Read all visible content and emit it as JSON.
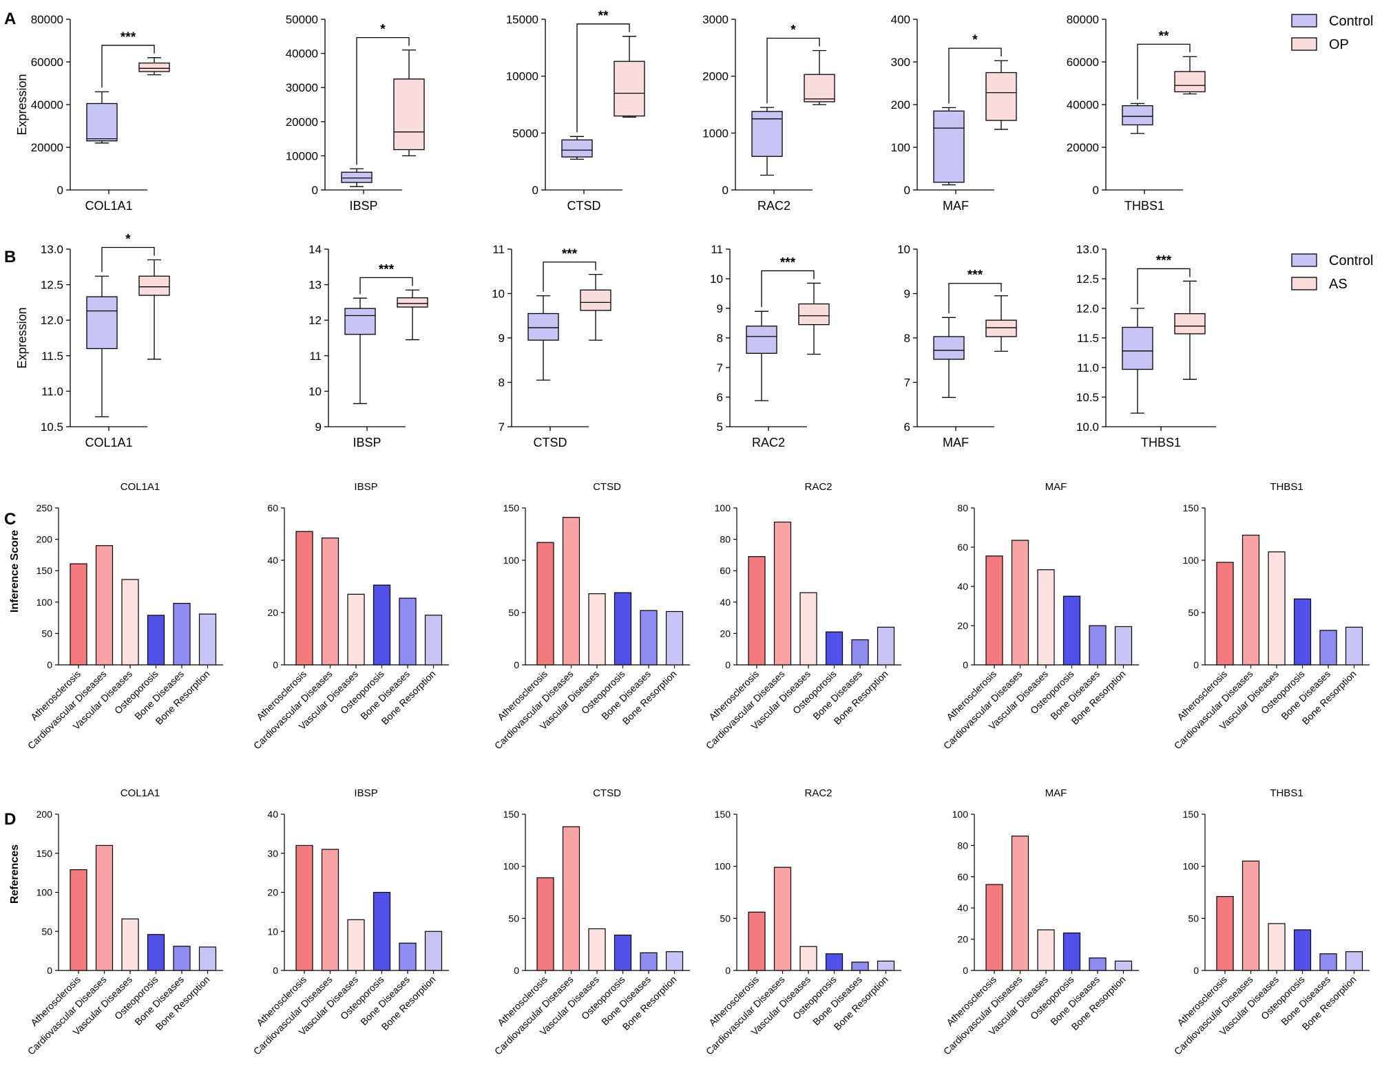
{
  "figure": {
    "panel_labels": [
      "A",
      "B",
      "C",
      "D"
    ]
  },
  "colors": {
    "control": "#c6c5f5",
    "op": "#fbdcdc",
    "as": "#fbdcdc",
    "atherosclerosis": "#f47a7d",
    "cardiovascular_diseases": "#f9a4a4",
    "vascular_diseases": "#fde0e0",
    "osteoporosis": "#5150ea",
    "bone_diseases": "#8e8cf1",
    "bone_resorption": "#c6c5f5"
  },
  "legends": {
    "A": [
      {
        "label": "Control",
        "color": "#c6c5f5"
      },
      {
        "label": "OP",
        "color": "#fbdcdc"
      }
    ],
    "B": [
      {
        "label": "Control",
        "color": "#c6c5f5"
      },
      {
        "label": "AS",
        "color": "#fbdcdc"
      }
    ]
  },
  "chart_data": [
    {
      "panel": "A",
      "type": "box",
      "ylabel": "Expression",
      "groups": [
        "Control",
        "OP"
      ],
      "charts": [
        {
          "gene": "COL1A1",
          "ylim": [
            0,
            80000
          ],
          "yticks": [
            0,
            20000,
            40000,
            60000,
            80000
          ],
          "yticklabels": [
            "0",
            "20000",
            "40000",
            "60000",
            "80000"
          ],
          "sig": "***",
          "boxes": [
            {
              "min": 22000,
              "q1": 23000,
              "median": 24000,
              "q3": 40500,
              "max": 46000
            },
            {
              "min": 54000,
              "q1": 55500,
              "median": 57000,
              "q3": 59500,
              "max": 62000
            }
          ]
        },
        {
          "gene": "IBSP",
          "ylim": [
            0,
            50000
          ],
          "yticks": [
            0,
            10000,
            20000,
            30000,
            40000,
            50000
          ],
          "yticklabels": [
            "0",
            "10000",
            "20000",
            "30000",
            "40000",
            "50000"
          ],
          "sig": "*",
          "boxes": [
            {
              "min": 1000,
              "q1": 2200,
              "median": 3500,
              "q3": 5200,
              "max": 6200
            },
            {
              "min": 10000,
              "q1": 11800,
              "median": 17000,
              "q3": 32500,
              "max": 41000
            }
          ]
        },
        {
          "gene": "CTSD",
          "ylim": [
            0,
            15000
          ],
          "yticks": [
            0,
            5000,
            10000,
            15000
          ],
          "yticklabels": [
            "0",
            "5000",
            "10000",
            "15000"
          ],
          "sig": "**",
          "boxes": [
            {
              "min": 2700,
              "q1": 2900,
              "median": 3500,
              "q3": 4400,
              "max": 4700
            },
            {
              "min": 6400,
              "q1": 6500,
              "median": 8500,
              "q3": 11300,
              "max": 13500
            }
          ]
        },
        {
          "gene": "RAC2",
          "ylim": [
            0,
            3000
          ],
          "yticks": [
            0,
            1000,
            2000,
            3000
          ],
          "yticklabels": [
            "0",
            "1000",
            "2000",
            "3000"
          ],
          "sig": "*",
          "boxes": [
            {
              "min": 260,
              "q1": 590,
              "median": 1250,
              "q3": 1380,
              "max": 1450
            },
            {
              "min": 1500,
              "q1": 1550,
              "median": 1600,
              "q3": 2030,
              "max": 2450
            }
          ]
        },
        {
          "gene": "MAF",
          "ylim": [
            0,
            400
          ],
          "yticks": [
            0,
            100,
            200,
            300,
            400
          ],
          "yticklabels": [
            "0",
            "100",
            "200",
            "300",
            "400"
          ],
          "sig": "*",
          "boxes": [
            {
              "min": 12,
              "q1": 18,
              "median": 145,
              "q3": 185,
              "max": 193
            },
            {
              "min": 142,
              "q1": 163,
              "median": 228,
              "q3": 275,
              "max": 303
            }
          ]
        },
        {
          "gene": "THBS1",
          "ylim": [
            0,
            80000
          ],
          "yticks": [
            0,
            20000,
            40000,
            60000,
            80000
          ],
          "yticklabels": [
            "0",
            "20000",
            "40000",
            "60000",
            "80000"
          ],
          "sig": "**",
          "boxes": [
            {
              "min": 26500,
              "q1": 30500,
              "median": 34500,
              "q3": 39500,
              "max": 40500
            },
            {
              "min": 45000,
              "q1": 46000,
              "median": 49000,
              "q3": 55500,
              "max": 62500
            }
          ]
        }
      ]
    },
    {
      "panel": "B",
      "type": "box",
      "ylabel": "Expression",
      "groups": [
        "Control",
        "AS"
      ],
      "charts": [
        {
          "gene": "COL1A1",
          "ylim": [
            10.5,
            13.0
          ],
          "yticks": [
            10.5,
            11.0,
            11.5,
            12.0,
            12.5,
            13.0
          ],
          "yticklabels": [
            "10.5",
            "11.0",
            "11.5",
            "12.0",
            "12.5",
            "13.0"
          ],
          "sig": "*",
          "boxes": [
            {
              "min": 10.64,
              "q1": 11.6,
              "median": 12.13,
              "q3": 12.33,
              "max": 12.62
            },
            {
              "min": 11.45,
              "q1": 12.35,
              "median": 12.47,
              "q3": 12.62,
              "max": 12.85
            }
          ]
        },
        {
          "gene": "IBSP",
          "ylim": [
            9,
            14
          ],
          "yticks": [
            9,
            10,
            11,
            12,
            13,
            14
          ],
          "yticklabels": [
            "9",
            "10",
            "11",
            "12",
            "13",
            "14"
          ],
          "sig": "***",
          "boxes": [
            {
              "min": 9.65,
              "q1": 11.6,
              "median": 12.13,
              "q3": 12.33,
              "max": 12.62
            },
            {
              "min": 11.45,
              "q1": 12.37,
              "median": 12.47,
              "q3": 12.63,
              "max": 12.85
            }
          ]
        },
        {
          "gene": "CTSD",
          "ylim": [
            7,
            11
          ],
          "yticks": [
            7,
            8,
            9,
            10,
            11
          ],
          "yticklabels": [
            "7",
            "8",
            "9",
            "10",
            "11"
          ],
          "sig": "***",
          "boxes": [
            {
              "min": 8.05,
              "q1": 8.95,
              "median": 9.23,
              "q3": 9.55,
              "max": 9.95
            },
            {
              "min": 8.95,
              "q1": 9.62,
              "median": 9.8,
              "q3": 10.08,
              "max": 10.43
            }
          ]
        },
        {
          "gene": "RAC2",
          "ylim": [
            5,
            11
          ],
          "yticks": [
            5,
            6,
            7,
            8,
            9,
            10,
            11
          ],
          "yticklabels": [
            "5",
            "6",
            "7",
            "8",
            "9",
            "10",
            "11"
          ],
          "sig": "***",
          "boxes": [
            {
              "min": 5.88,
              "q1": 7.48,
              "median": 8.05,
              "q3": 8.4,
              "max": 8.9
            },
            {
              "min": 7.45,
              "q1": 8.45,
              "median": 8.75,
              "q3": 9.15,
              "max": 9.85
            }
          ]
        },
        {
          "gene": "MAF",
          "ylim": [
            6,
            10
          ],
          "yticks": [
            6,
            7,
            8,
            9,
            10
          ],
          "yticklabels": [
            "6",
            "7",
            "8",
            "9",
            "10"
          ],
          "sig": "***",
          "boxes": [
            {
              "min": 6.66,
              "q1": 7.52,
              "median": 7.72,
              "q3": 8.03,
              "max": 8.46
            },
            {
              "min": 7.7,
              "q1": 8.03,
              "median": 8.23,
              "q3": 8.4,
              "max": 8.95
            }
          ]
        },
        {
          "gene": "THBS1",
          "ylim": [
            10.0,
            13.0
          ],
          "yticks": [
            10.0,
            10.5,
            11.0,
            11.5,
            12.0,
            12.5,
            13.0
          ],
          "yticklabels": [
            "10.0",
            "10.5",
            "11.0",
            "11.5",
            "12.0",
            "12.5",
            "13.0"
          ],
          "sig": "***",
          "boxes": [
            {
              "min": 10.23,
              "q1": 10.97,
              "median": 11.28,
              "q3": 11.68,
              "max": 12.0
            },
            {
              "min": 10.8,
              "q1": 11.57,
              "median": 11.7,
              "q3": 11.91,
              "max": 12.46
            }
          ]
        }
      ]
    },
    {
      "panel": "C",
      "type": "bar",
      "ylabel": "Inference Score",
      "categories": [
        "Atherosclerosis",
        "Cardiovascular Diseases",
        "Vascular Diseases",
        "Osteoporosis",
        "Bone Diseases",
        "Bone Resorption"
      ],
      "charts": [
        {
          "gene": "COL1A1",
          "ylim": [
            0,
            250
          ],
          "yticks": [
            0,
            50,
            100,
            150,
            200,
            250
          ],
          "yticklabels": [
            "0",
            "50",
            "100",
            "150",
            "200",
            "250"
          ],
          "values": [
            161,
            190,
            136,
            79,
            98,
            81
          ]
        },
        {
          "gene": "IBSP",
          "ylim": [
            0,
            60
          ],
          "yticks": [
            0,
            20,
            40,
            60
          ],
          "yticklabels": [
            "0",
            "20",
            "40",
            "60"
          ],
          "values": [
            51,
            48.5,
            27,
            30.5,
            25.5,
            19
          ]
        },
        {
          "gene": "CTSD",
          "ylim": [
            0,
            150
          ],
          "yticks": [
            0,
            50,
            100,
            150
          ],
          "yticklabels": [
            "0",
            "50",
            "100",
            "150"
          ],
          "values": [
            117,
            141,
            68,
            69,
            52,
            51
          ]
        },
        {
          "gene": "RAC2",
          "ylim": [
            0,
            100
          ],
          "yticks": [
            0,
            20,
            40,
            60,
            80,
            100
          ],
          "yticklabels": [
            "0",
            "20",
            "40",
            "60",
            "80",
            "100"
          ],
          "values": [
            69,
            91,
            46,
            21,
            16,
            24
          ]
        },
        {
          "gene": "MAF",
          "ylim": [
            0,
            80
          ],
          "yticks": [
            0,
            20,
            40,
            60,
            80
          ],
          "yticklabels": [
            "0",
            "20",
            "40",
            "60",
            "80"
          ],
          "values": [
            55.5,
            63.5,
            48.5,
            35,
            20,
            19.5
          ]
        },
        {
          "gene": "THBS1",
          "ylim": [
            0,
            150
          ],
          "yticks": [
            0,
            50,
            100,
            150
          ],
          "yticklabels": [
            "0",
            "50",
            "100",
            "150"
          ],
          "values": [
            98,
            124,
            108,
            63,
            33,
            36
          ]
        }
      ]
    },
    {
      "panel": "D",
      "type": "bar",
      "ylabel": "References",
      "categories": [
        "Atherosclerosis",
        "Cardiovascular Diseases",
        "Vascular Diseases",
        "Osteoporosis",
        "Bone Diseases",
        "Bone Resorption"
      ],
      "charts": [
        {
          "gene": "COL1A1",
          "ylim": [
            0,
            200
          ],
          "yticks": [
            0,
            50,
            100,
            150,
            200
          ],
          "yticklabels": [
            "0",
            "50",
            "100",
            "150",
            "200"
          ],
          "values": [
            129,
            160,
            66,
            46,
            31,
            30
          ]
        },
        {
          "gene": "IBSP",
          "ylim": [
            0,
            40
          ],
          "yticks": [
            0,
            10,
            20,
            30,
            40
          ],
          "yticklabels": [
            "0",
            "10",
            "20",
            "30",
            "40"
          ],
          "values": [
            32,
            31,
            13,
            20,
            7,
            10
          ]
        },
        {
          "gene": "CTSD",
          "ylim": [
            0,
            150
          ],
          "yticks": [
            0,
            50,
            100,
            150
          ],
          "yticklabels": [
            "0",
            "50",
            "100",
            "150"
          ],
          "values": [
            89,
            138,
            40,
            34,
            17,
            18
          ]
        },
        {
          "gene": "RAC2",
          "ylim": [
            0,
            150
          ],
          "yticks": [
            0,
            50,
            100,
            150
          ],
          "yticklabels": [
            "0",
            "50",
            "100",
            "150"
          ],
          "values": [
            56,
            99,
            23,
            16,
            8,
            9
          ]
        },
        {
          "gene": "MAF",
          "ylim": [
            0,
            100
          ],
          "yticks": [
            0,
            20,
            40,
            60,
            80,
            100
          ],
          "yticklabels": [
            "0",
            "20",
            "40",
            "60",
            "80",
            "100"
          ],
          "values": [
            55,
            86,
            26,
            24,
            8,
            6
          ]
        },
        {
          "gene": "THBS1",
          "ylim": [
            0,
            150
          ],
          "yticks": [
            0,
            50,
            100,
            150
          ],
          "yticklabels": [
            "0",
            "50",
            "100",
            "150"
          ],
          "values": [
            71,
            105,
            45,
            39,
            16,
            18
          ]
        }
      ]
    }
  ]
}
